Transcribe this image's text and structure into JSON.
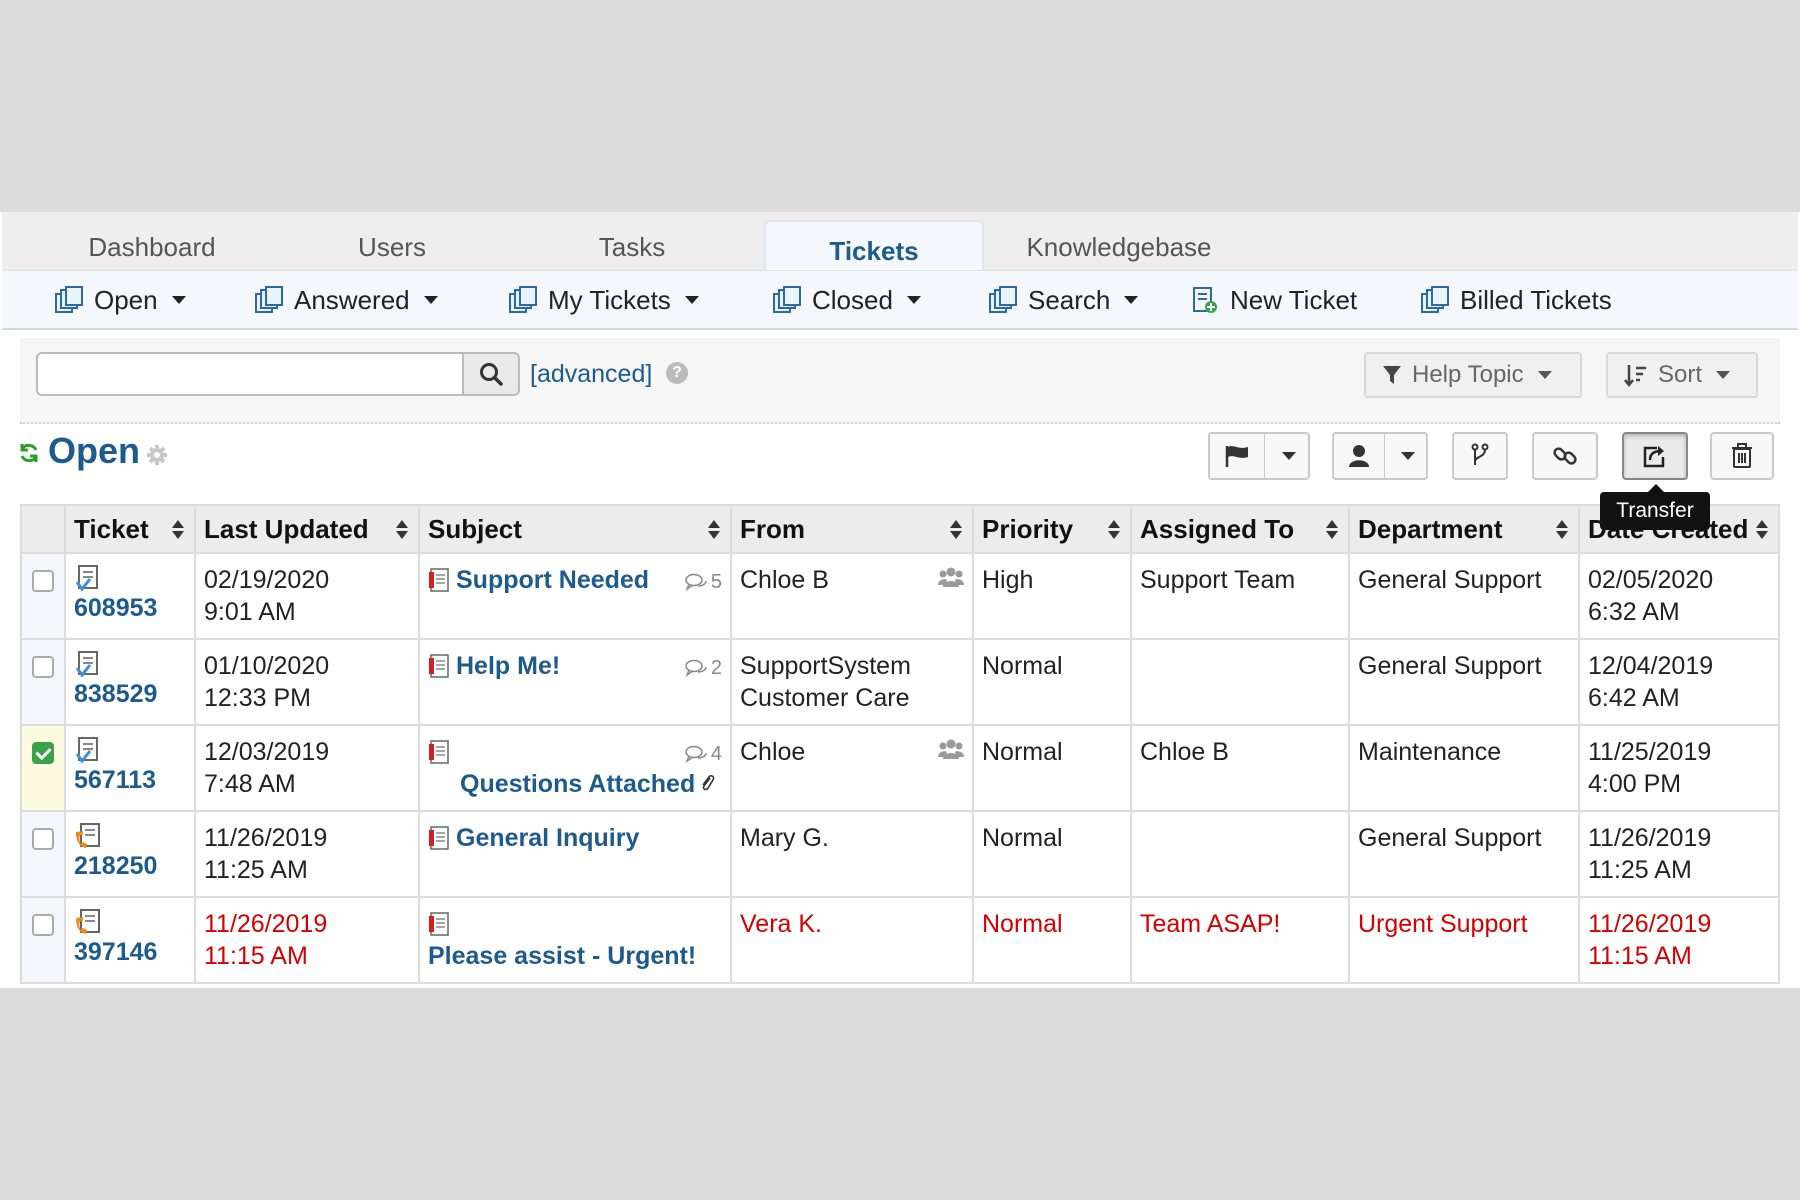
{
  "nav": {
    "tabs": [
      {
        "label": "Dashboard"
      },
      {
        "label": "Users"
      },
      {
        "label": "Tasks"
      },
      {
        "label": "Tickets"
      },
      {
        "label": "Knowledgebase"
      }
    ],
    "active_tab": "Tickets"
  },
  "subnav": {
    "items": [
      {
        "label": "Open",
        "icon": "tickets-icon",
        "dropdown": true
      },
      {
        "label": "Answered",
        "icon": "tickets-icon",
        "dropdown": true
      },
      {
        "label": "My Tickets",
        "icon": "tickets-icon",
        "dropdown": true
      },
      {
        "label": "Closed",
        "icon": "tickets-icon",
        "dropdown": true
      },
      {
        "label": "Search",
        "icon": "tickets-icon",
        "dropdown": true
      },
      {
        "label": "New Ticket",
        "icon": "new-ticket-icon",
        "dropdown": false
      },
      {
        "label": "Billed Tickets",
        "icon": "tickets-icon",
        "dropdown": false
      }
    ]
  },
  "search": {
    "value": "",
    "advanced_label": "[advanced]",
    "help_glyph": "?",
    "help_topic_label": "Help Topic",
    "sort_label": "Sort"
  },
  "page": {
    "title": "Open",
    "tooltip": "Transfer"
  },
  "table": {
    "headers": [
      "Ticket",
      "Last Updated",
      "Subject",
      "From",
      "Priority",
      "Assigned To",
      "Department",
      "Date Created"
    ],
    "rows": [
      {
        "ticket": "608953",
        "updated_date": "02/19/2020",
        "updated_time": "9:01 AM",
        "subject": "Support Needed",
        "thread_count": "5",
        "from_line1": "Chloe B",
        "from_line2": "",
        "collab": true,
        "priority": "High",
        "assigned": "Support Team",
        "department": "General Support",
        "created_date": "02/05/2020",
        "created_time": "6:32 AM",
        "checked": false,
        "urgent": false,
        "source": "web"
      },
      {
        "ticket": "838529",
        "updated_date": "01/10/2020",
        "updated_time": "12:33 PM",
        "subject": "Help Me!",
        "thread_count": "2",
        "from_line1": "SupportSystem",
        "from_line2": "Customer Care",
        "collab": false,
        "priority": "Normal",
        "assigned": "",
        "department": "General Support",
        "created_date": "12/04/2019",
        "created_time": "6:42 AM",
        "checked": false,
        "urgent": false,
        "source": "web"
      },
      {
        "ticket": "567113",
        "updated_date": "12/03/2019",
        "updated_time": "7:48 AM",
        "subject": "Questions Attached",
        "thread_count": "4",
        "from_line1": "Chloe",
        "from_line2": "",
        "collab": true,
        "priority": "Normal",
        "assigned": "Chloe B",
        "department": "Maintenance",
        "created_date": "11/25/2019",
        "created_time": "4:00 PM",
        "checked": true,
        "urgent": false,
        "source": "web"
      },
      {
        "ticket": "218250",
        "updated_date": "11/26/2019",
        "updated_time": "11:25 AM",
        "subject": "General Inquiry",
        "thread_count": "",
        "from_line1": "Mary G.",
        "from_line2": "",
        "collab": false,
        "priority": "Normal",
        "assigned": "",
        "department": "General Support",
        "created_date": "11/26/2019",
        "created_time": "11:25 AM",
        "checked": false,
        "urgent": false,
        "source": "phone"
      },
      {
        "ticket": "397146",
        "updated_date": "11/26/2019",
        "updated_time": "11:15 AM",
        "subject": "Please assist - Urgent!",
        "thread_count": "",
        "from_line1": "Vera K.",
        "from_line2": "",
        "collab": false,
        "priority": "Normal",
        "assigned": "Team ASAP!",
        "department": "Urgent Support",
        "created_date": "11/26/2019",
        "created_time": "11:15 AM",
        "checked": false,
        "urgent": true,
        "source": "phone"
      }
    ]
  },
  "colors": {
    "link_blue": "#1d5a8e",
    "urgent_red": "#d40000",
    "refresh_green": "#2aa02a"
  }
}
